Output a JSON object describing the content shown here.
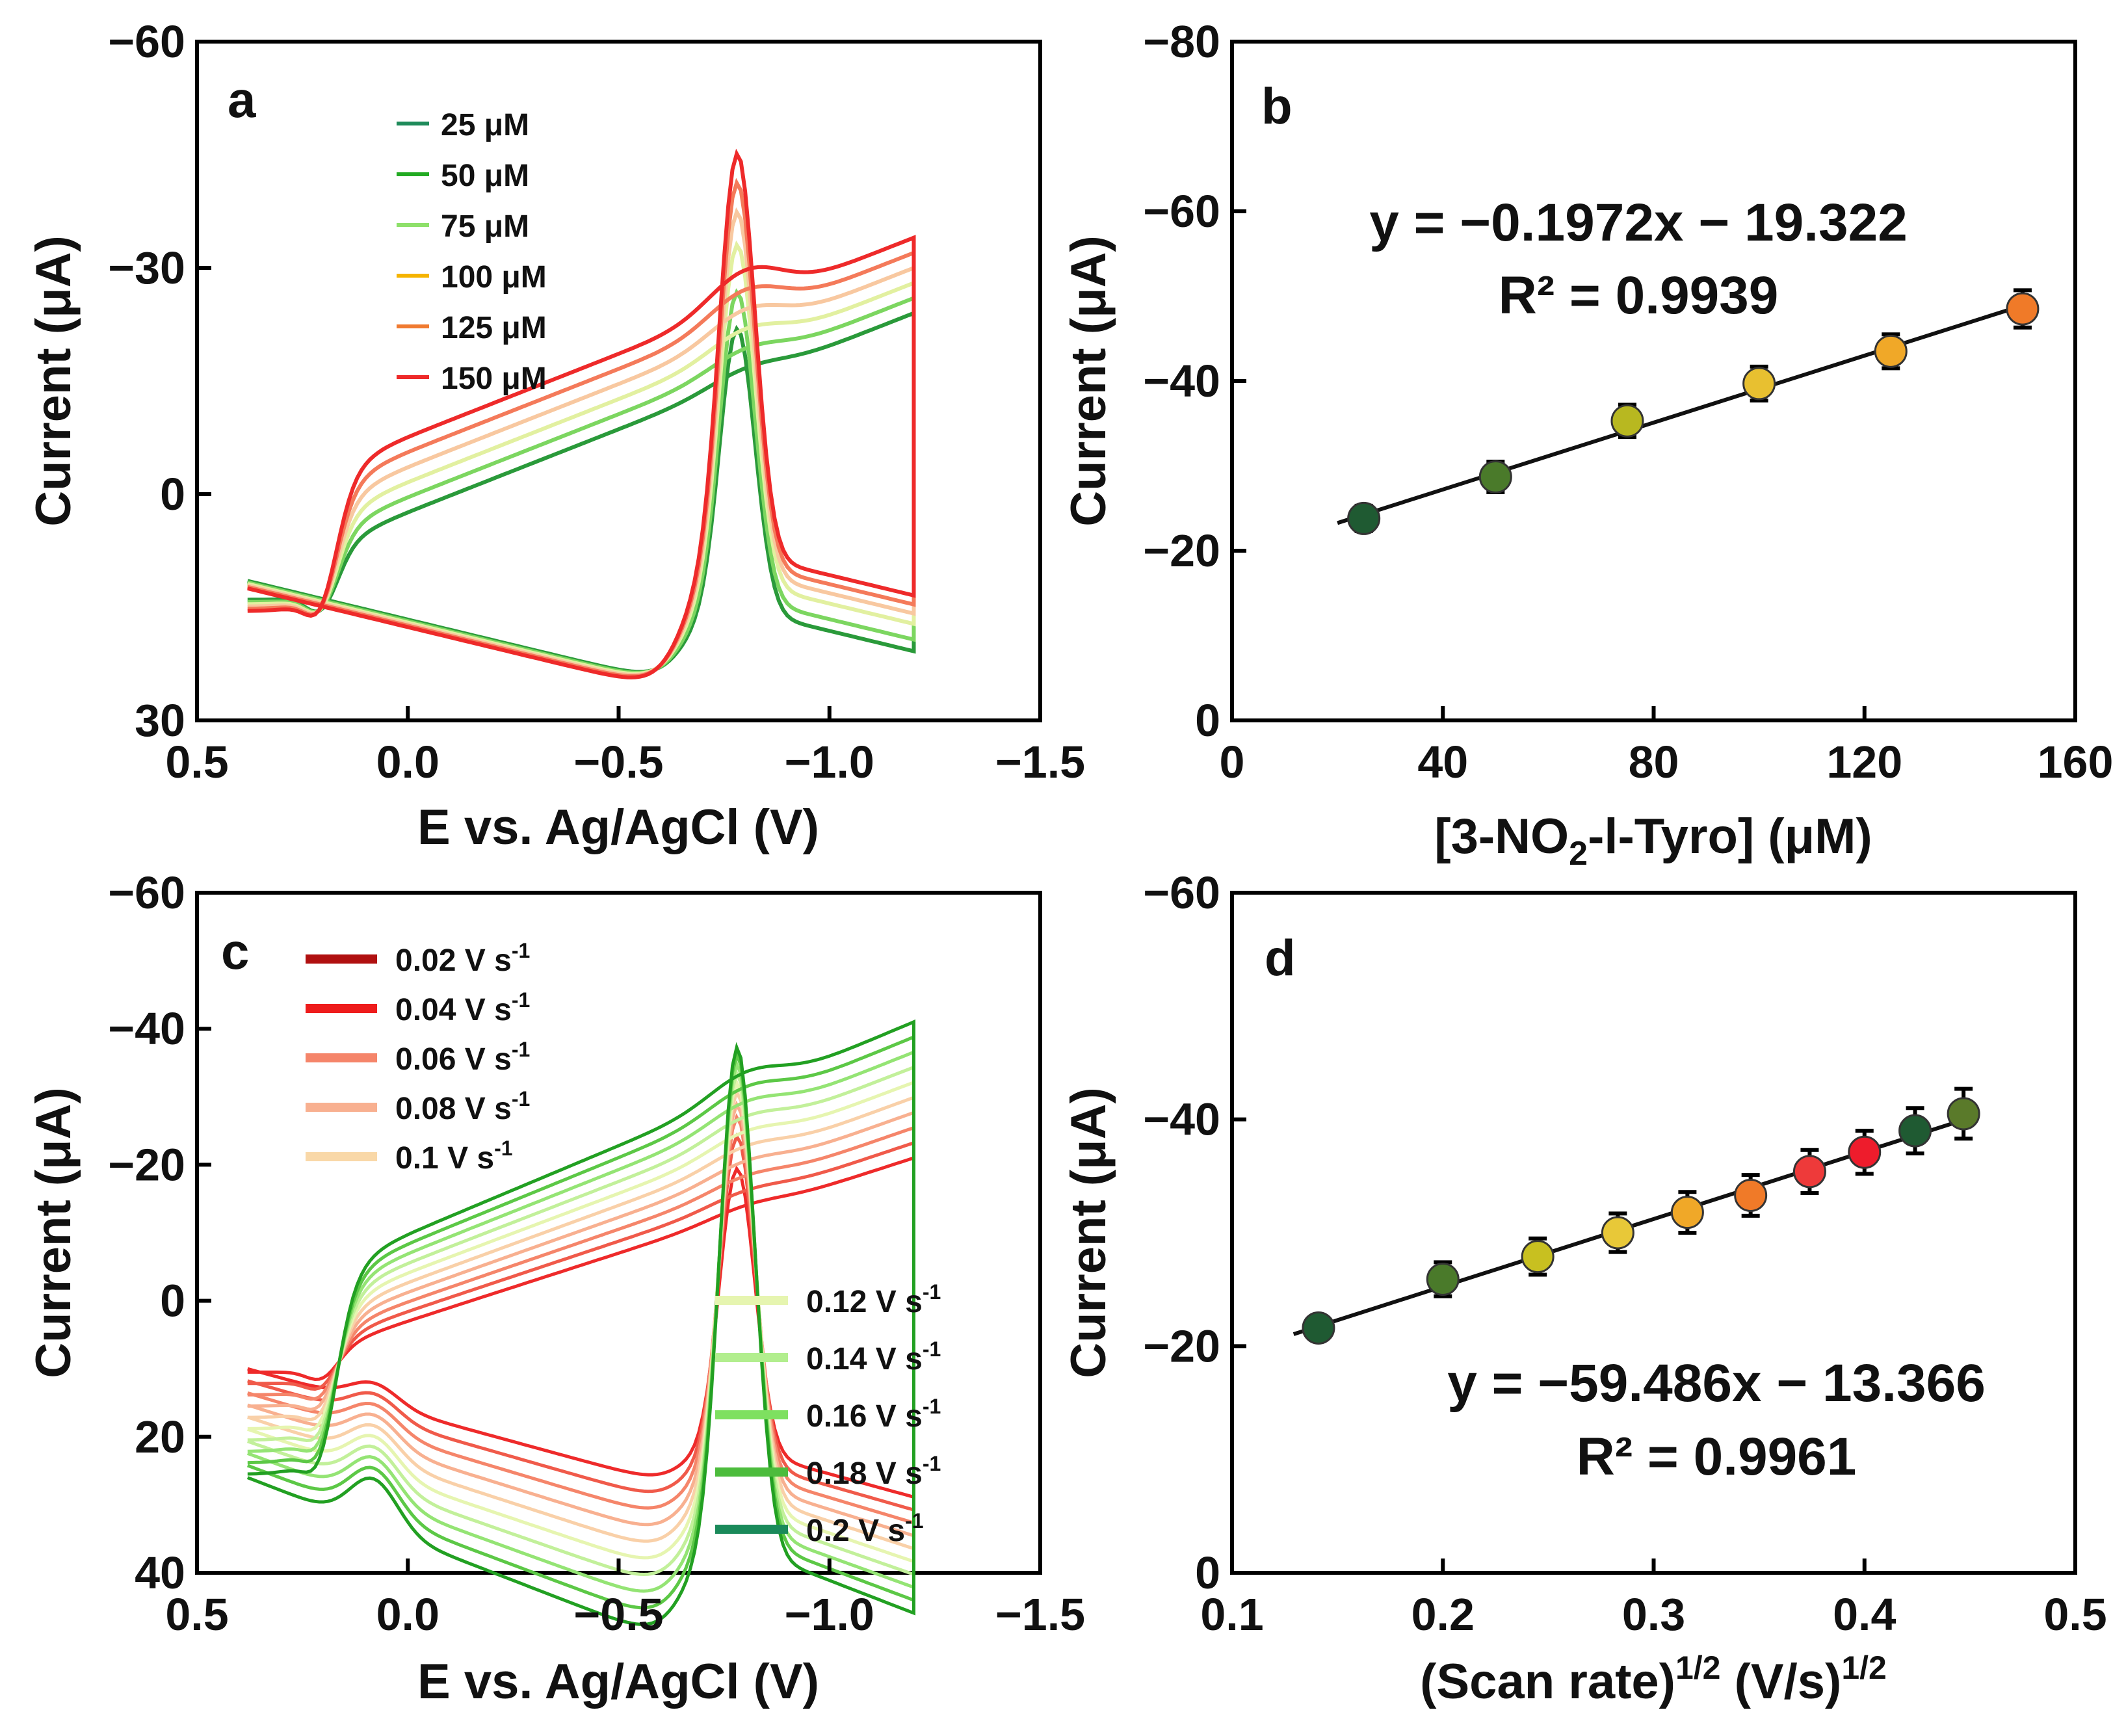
{
  "chart_data": [
    {
      "panel": "a",
      "type": "line",
      "xlabel": "E vs. Ag/AgCl (V)",
      "ylabel": "Current (μA)",
      "xlim": [
        0.5,
        -1.5
      ],
      "ylim": [
        30,
        -60
      ],
      "xticks": [
        "0.5",
        "0.0",
        "−0.5",
        "−1.0",
        "−1.5"
      ],
      "xtick_values": [
        0.5,
        0.0,
        -0.5,
        -1.0,
        -1.5
      ],
      "yticks": [
        "30",
        "0",
        "−30",
        "−60"
      ],
      "ytick_values": [
        30,
        0,
        -30,
        -60
      ],
      "legend": [
        {
          "label": "25 μM",
          "color": "#1e8a5a"
        },
        {
          "label": "50 μM",
          "color": "#22aa22"
        },
        {
          "label": "75 μM",
          "color": "#8ee06a"
        },
        {
          "label": "100 μM",
          "color": "#f5b400"
        },
        {
          "label": "125 μM",
          "color": "#f07a30"
        },
        {
          "label": "150 μM",
          "color": "#ee2a2a"
        }
      ],
      "series": [
        {
          "name": "25 μM",
          "peak_current": -23.5,
          "color": "#2a9a3a"
        },
        {
          "name": "50 μM",
          "peak_current": -28.5,
          "color": "#7cd660"
        },
        {
          "name": "75 μM",
          "peak_current": -35.0,
          "color": "#e2f0a0"
        },
        {
          "name": "100 μM",
          "peak_current": -39.5,
          "color": "#f8c8a0"
        },
        {
          "name": "125 μM",
          "peak_current": -43.5,
          "color": "#f47a5a"
        },
        {
          "name": "150 μM",
          "peak_current": -47.5,
          "color": "#ee2a2a"
        }
      ]
    },
    {
      "panel": "b",
      "type": "scatter",
      "xlabel_main": "[3-NO",
      "xlabel_sub": "2",
      "xlabel_end": "-l-Tyro] (μM)",
      "ylabel": "Current (μA)",
      "xlim": [
        0,
        160
      ],
      "ylim": [
        0,
        -80
      ],
      "xticks": [
        "0",
        "40",
        "80",
        "120",
        "160"
      ],
      "xtick_values": [
        0,
        40,
        80,
        120,
        160
      ],
      "yticks": [
        "0",
        "−20",
        "−40",
        "−60",
        "−80"
      ],
      "ytick_values": [
        0,
        -20,
        -40,
        -60,
        -80
      ],
      "x": [
        25,
        50,
        75,
        100,
        125,
        150
      ],
      "y": [
        -23.8,
        -28.7,
        -35.3,
        -39.7,
        -43.5,
        -48.5
      ],
      "error": [
        1.5,
        1.8,
        1.9,
        2.0,
        2.0,
        2.2
      ],
      "point_colors": [
        "#1f5a32",
        "#4a7a2a",
        "#b8b820",
        "#e8c030",
        "#f0a828",
        "#f07a28"
      ],
      "fit": {
        "slope": -0.1972,
        "intercept": -19.322
      },
      "equation": "y = −0.1972x − 19.322",
      "r2": "R² = 0.9939"
    },
    {
      "panel": "c",
      "type": "line",
      "xlabel": "E vs. Ag/AgCl (V)",
      "ylabel": "Current (μA)",
      "xlim": [
        0.5,
        -1.5
      ],
      "ylim": [
        40,
        -60
      ],
      "xticks": [
        "0.5",
        "0.0",
        "−0.5",
        "−1.0",
        "−1.5"
      ],
      "xtick_values": [
        0.5,
        0.0,
        -0.5,
        -1.0,
        -1.5
      ],
      "yticks": [
        "40",
        "20",
        "0",
        "−20",
        "−40",
        "−60"
      ],
      "ytick_values": [
        40,
        20,
        0,
        -20,
        -40,
        -60
      ],
      "legend_left": [
        {
          "label": "0.02 V s",
          "sup": "-1",
          "color": "#b01010"
        },
        {
          "label": "0.04 V s",
          "sup": "-1",
          "color": "#ee1c1c"
        },
        {
          "label": "0.06 V s",
          "sup": "-1",
          "color": "#f5856a"
        },
        {
          "label": "0.08 V s",
          "sup": "-1",
          "color": "#f8b090"
        },
        {
          "label": "0.1 V s",
          "sup": "-1",
          "color": "#f9d8a8"
        }
      ],
      "legend_right": [
        {
          "label": "0.12 V s",
          "sup": "-1",
          "color": "#e6f5b0"
        },
        {
          "label": "0.14 V s",
          "sup": "-1",
          "color": "#b2ee8e"
        },
        {
          "label": "0.16 V s",
          "sup": "-1",
          "color": "#7ee060"
        },
        {
          "label": "0.18 V s",
          "sup": "-1",
          "color": "#4cbc3c"
        },
        {
          "label": "0.2 V s",
          "sup": "-1",
          "color": "#1a8a5a"
        }
      ],
      "series": [
        {
          "name": "0.02 V s-1",
          "peak_current": -21.0,
          "color": "#ee2a2a"
        },
        {
          "name": "0.04 V s-1",
          "peak_current": -26.0,
          "color": "#f05a4a"
        },
        {
          "name": "0.06 V s-1",
          "peak_current": -29.0,
          "color": "#f5856a"
        },
        {
          "name": "0.08 V s-1",
          "peak_current": -31.0,
          "color": "#f8b090"
        },
        {
          "name": "0.1 V s-1",
          "peak_current": -33.0,
          "color": "#f9d0a8"
        },
        {
          "name": "0.12 V s-1",
          "peak_current": -34.5,
          "color": "#e6f5b0"
        },
        {
          "name": "0.14 V s-1",
          "peak_current": -36.0,
          "color": "#c2f09a"
        },
        {
          "name": "0.16 V s-1",
          "peak_current": -37.5,
          "color": "#94e474"
        },
        {
          "name": "0.18 V s-1",
          "peak_current": -39.0,
          "color": "#5cc846"
        },
        {
          "name": "0.2 V s-1",
          "peak_current": -40.2,
          "color": "#22a022"
        }
      ]
    },
    {
      "panel": "d",
      "type": "scatter",
      "xlabel_main": "(Scan rate)",
      "xlabel_sup1": "1/2",
      "xlabel_mid": " (V/s)",
      "xlabel_sup2": "1/2",
      "ylabel": "Current (μA)",
      "xlim": [
        0.1,
        0.5
      ],
      "ylim": [
        0,
        -60
      ],
      "xticks": [
        "0.1",
        "0.2",
        "0.3",
        "0.4",
        "0.5"
      ],
      "xtick_values": [
        0.1,
        0.2,
        0.3,
        0.4,
        0.5
      ],
      "yticks": [
        "0",
        "−20",
        "−40",
        "−60"
      ],
      "ytick_values": [
        0,
        -20,
        -40,
        -60
      ],
      "x": [
        0.141,
        0.2,
        0.245,
        0.283,
        0.316,
        0.346,
        0.374,
        0.4,
        0.424,
        0.447
      ],
      "y": [
        -21.6,
        -25.9,
        -27.9,
        -30.0,
        -31.8,
        -33.3,
        -35.4,
        -37.1,
        -39.0,
        -40.5
      ],
      "error": [
        1.0,
        1.5,
        1.6,
        1.7,
        1.8,
        1.8,
        1.9,
        1.9,
        2.0,
        2.2
      ],
      "point_colors": [
        "#1f5a32",
        "#4a7a2a",
        "#c8c020",
        "#e8c838",
        "#f0a828",
        "#f07a28",
        "#ee3a3a",
        "#ee1c2c",
        "#1f5a32",
        "#5a7a2a"
      ],
      "fit": {
        "slope": -59.486,
        "intercept": -13.366
      },
      "equation": "y = −59.486x − 13.366",
      "r2": "R² = 0.9961"
    }
  ]
}
